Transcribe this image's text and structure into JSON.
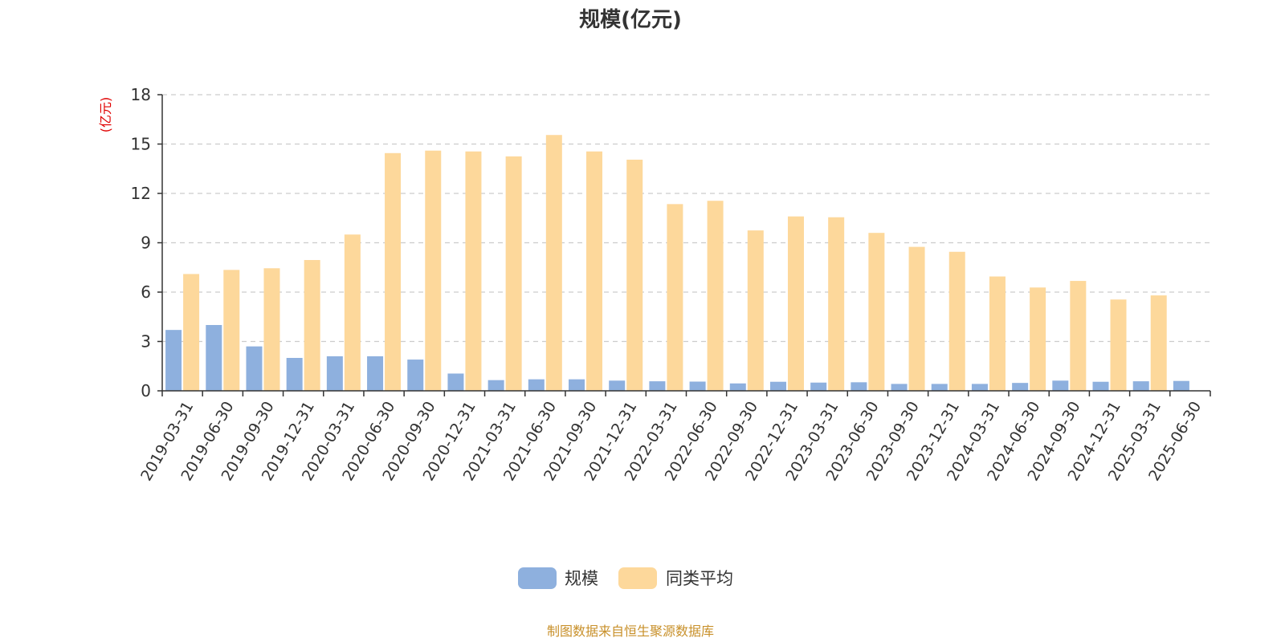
{
  "chart_data": {
    "type": "bar",
    "title": "规模(亿元)",
    "ylabel": "(亿元)",
    "xlabel": "",
    "ylim": [
      0,
      18
    ],
    "yticks": [
      0,
      3,
      6,
      9,
      12,
      15,
      18
    ],
    "grid": true,
    "legend_position": "bottom",
    "categories": [
      "2019-03-31",
      "2019-06-30",
      "2019-09-30",
      "2019-12-31",
      "2020-03-31",
      "2020-06-30",
      "2020-09-30",
      "2020-12-31",
      "2021-03-31",
      "2021-06-30",
      "2021-09-30",
      "2021-12-31",
      "2022-03-31",
      "2022-06-30",
      "2022-09-30",
      "2022-12-31",
      "2023-03-31",
      "2023-06-30",
      "2023-09-30",
      "2023-12-31",
      "2024-03-31",
      "2024-06-30",
      "2024-09-30",
      "2024-12-31",
      "2025-03-31",
      "2025-06-30"
    ],
    "series": [
      {
        "name": "规模",
        "color": "#8eb0de",
        "values": [
          3.7,
          4.0,
          2.7,
          2.0,
          2.1,
          2.1,
          1.9,
          1.05,
          0.65,
          0.7,
          0.7,
          0.62,
          0.58,
          0.56,
          0.45,
          0.55,
          0.5,
          0.52,
          0.42,
          0.42,
          0.42,
          0.48,
          0.62,
          0.55,
          0.58,
          0.6
        ]
      },
      {
        "name": "同类平均",
        "color": "#fdd89b",
        "values": [
          7.1,
          7.35,
          7.45,
          7.95,
          9.5,
          14.45,
          14.6,
          14.55,
          14.25,
          15.55,
          14.55,
          14.05,
          11.35,
          11.55,
          9.75,
          10.6,
          10.55,
          9.6,
          8.75,
          8.45,
          6.95,
          6.28,
          6.68,
          5.55,
          5.8,
          null
        ]
      }
    ]
  },
  "footer": {
    "source": "制图数据来自恒生聚源数据库"
  }
}
